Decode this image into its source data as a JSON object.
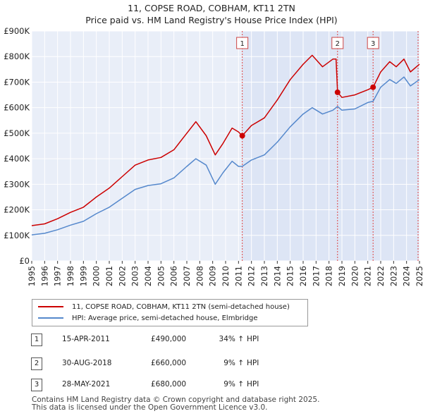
{
  "chart_data": {
    "type": "line",
    "title": "11, COPSE ROAD, COBHAM, KT11 2TN",
    "subtitle": "Price paid vs. HM Land Registry's House Price Index (HPI)",
    "x_ticks": [
      "1995",
      "1996",
      "1997",
      "1998",
      "1999",
      "2000",
      "2001",
      "2002",
      "2003",
      "2004",
      "2005",
      "2006",
      "2007",
      "2008",
      "2009",
      "2010",
      "2011",
      "2012",
      "2013",
      "2014",
      "2015",
      "2016",
      "2017",
      "2018",
      "2019",
      "2020",
      "2021",
      "2022",
      "2023",
      "2024",
      "2025"
    ],
    "xlim": [
      1995,
      2025
    ],
    "y_ticks": [
      "£0",
      "£100K",
      "£200K",
      "£300K",
      "£400K",
      "£500K",
      "£600K",
      "£700K",
      "£800K",
      "£900K"
    ],
    "y_tick_values": [
      0,
      100000,
      200000,
      300000,
      400000,
      500000,
      600000,
      700000,
      800000,
      900000
    ],
    "ylim": [
      0,
      900000
    ],
    "grid": true,
    "shaded_ranges": [
      [
        2011.29,
        2025.0
      ]
    ],
    "series": [
      {
        "name": "11, COPSE ROAD, COBHAM, KT11 2TN (semi-detached house)",
        "color": "#cc0000",
        "points": [
          [
            1995.0,
            138000
          ],
          [
            1996.0,
            145000
          ],
          [
            1997.0,
            165000
          ],
          [
            1998.0,
            190000
          ],
          [
            1999.0,
            210000
          ],
          [
            2000.0,
            250000
          ],
          [
            2001.0,
            285000
          ],
          [
            2002.0,
            330000
          ],
          [
            2003.0,
            375000
          ],
          [
            2004.0,
            395000
          ],
          [
            2005.0,
            405000
          ],
          [
            2006.0,
            435000
          ],
          [
            2007.0,
            500000
          ],
          [
            2007.7,
            545000
          ],
          [
            2008.5,
            490000
          ],
          [
            2009.2,
            415000
          ],
          [
            2009.8,
            460000
          ],
          [
            2010.5,
            520000
          ],
          [
            2011.0,
            505000
          ],
          [
            2011.29,
            490000
          ],
          [
            2012.0,
            530000
          ],
          [
            2013.0,
            560000
          ],
          [
            2014.0,
            630000
          ],
          [
            2015.0,
            710000
          ],
          [
            2016.0,
            770000
          ],
          [
            2016.7,
            805000
          ],
          [
            2017.5,
            760000
          ],
          [
            2018.3,
            790000
          ],
          [
            2018.55,
            790000
          ],
          [
            2018.66,
            660000
          ],
          [
            2019.0,
            640000
          ],
          [
            2020.0,
            650000
          ],
          [
            2021.0,
            670000
          ],
          [
            2021.41,
            680000
          ],
          [
            2022.0,
            740000
          ],
          [
            2022.7,
            780000
          ],
          [
            2023.2,
            760000
          ],
          [
            2023.8,
            790000
          ],
          [
            2024.3,
            740000
          ],
          [
            2025.0,
            770000
          ]
        ]
      },
      {
        "name": "HPI: Average price, semi-detached house, Elmbridge",
        "color": "#5588cc",
        "points": [
          [
            1995.0,
            102000
          ],
          [
            1996.0,
            108000
          ],
          [
            1997.0,
            122000
          ],
          [
            1998.0,
            140000
          ],
          [
            1999.0,
            155000
          ],
          [
            2000.0,
            185000
          ],
          [
            2001.0,
            210000
          ],
          [
            2002.0,
            245000
          ],
          [
            2003.0,
            280000
          ],
          [
            2004.0,
            295000
          ],
          [
            2005.0,
            302000
          ],
          [
            2006.0,
            325000
          ],
          [
            2007.0,
            370000
          ],
          [
            2007.7,
            400000
          ],
          [
            2008.5,
            375000
          ],
          [
            2009.2,
            300000
          ],
          [
            2009.8,
            345000
          ],
          [
            2010.5,
            390000
          ],
          [
            2011.0,
            370000
          ],
          [
            2011.29,
            370000
          ],
          [
            2012.0,
            395000
          ],
          [
            2013.0,
            415000
          ],
          [
            2014.0,
            465000
          ],
          [
            2015.0,
            525000
          ],
          [
            2016.0,
            575000
          ],
          [
            2016.7,
            600000
          ],
          [
            2017.5,
            575000
          ],
          [
            2018.3,
            590000
          ],
          [
            2018.66,
            605000
          ],
          [
            2019.0,
            590000
          ],
          [
            2020.0,
            595000
          ],
          [
            2021.0,
            620000
          ],
          [
            2021.41,
            625000
          ],
          [
            2022.0,
            680000
          ],
          [
            2022.7,
            710000
          ],
          [
            2023.2,
            695000
          ],
          [
            2023.8,
            720000
          ],
          [
            2024.3,
            685000
          ],
          [
            2025.0,
            710000
          ]
        ]
      }
    ],
    "markers": [
      {
        "label": "1",
        "x": 2011.29,
        "y": 490000
      },
      {
        "label": "2",
        "x": 2018.66,
        "y": 660000
      },
      {
        "label": "3",
        "x": 2021.41,
        "y": 680000
      }
    ]
  },
  "legend": {
    "property_label": "11, COPSE ROAD, COBHAM, KT11 2TN (semi-detached house)",
    "hpi_label": "HPI: Average price, semi-detached house, Elmbridge"
  },
  "sales": [
    {
      "num": "1",
      "date": "15-APR-2011",
      "price": "£490,000",
      "pct": "34% ↑",
      "hpi": "HPI"
    },
    {
      "num": "2",
      "date": "30-AUG-2018",
      "price": "£660,000",
      "pct": "9% ↑",
      "hpi": "HPI"
    },
    {
      "num": "3",
      "date": "28-MAY-2021",
      "price": "£680,000",
      "pct": "9% ↑",
      "hpi": "HPI"
    }
  ],
  "footer": {
    "line1": "Contains HM Land Registry data © Crown copyright and database right 2025.",
    "line2": "This data is licensed under the Open Government Licence v3.0."
  }
}
